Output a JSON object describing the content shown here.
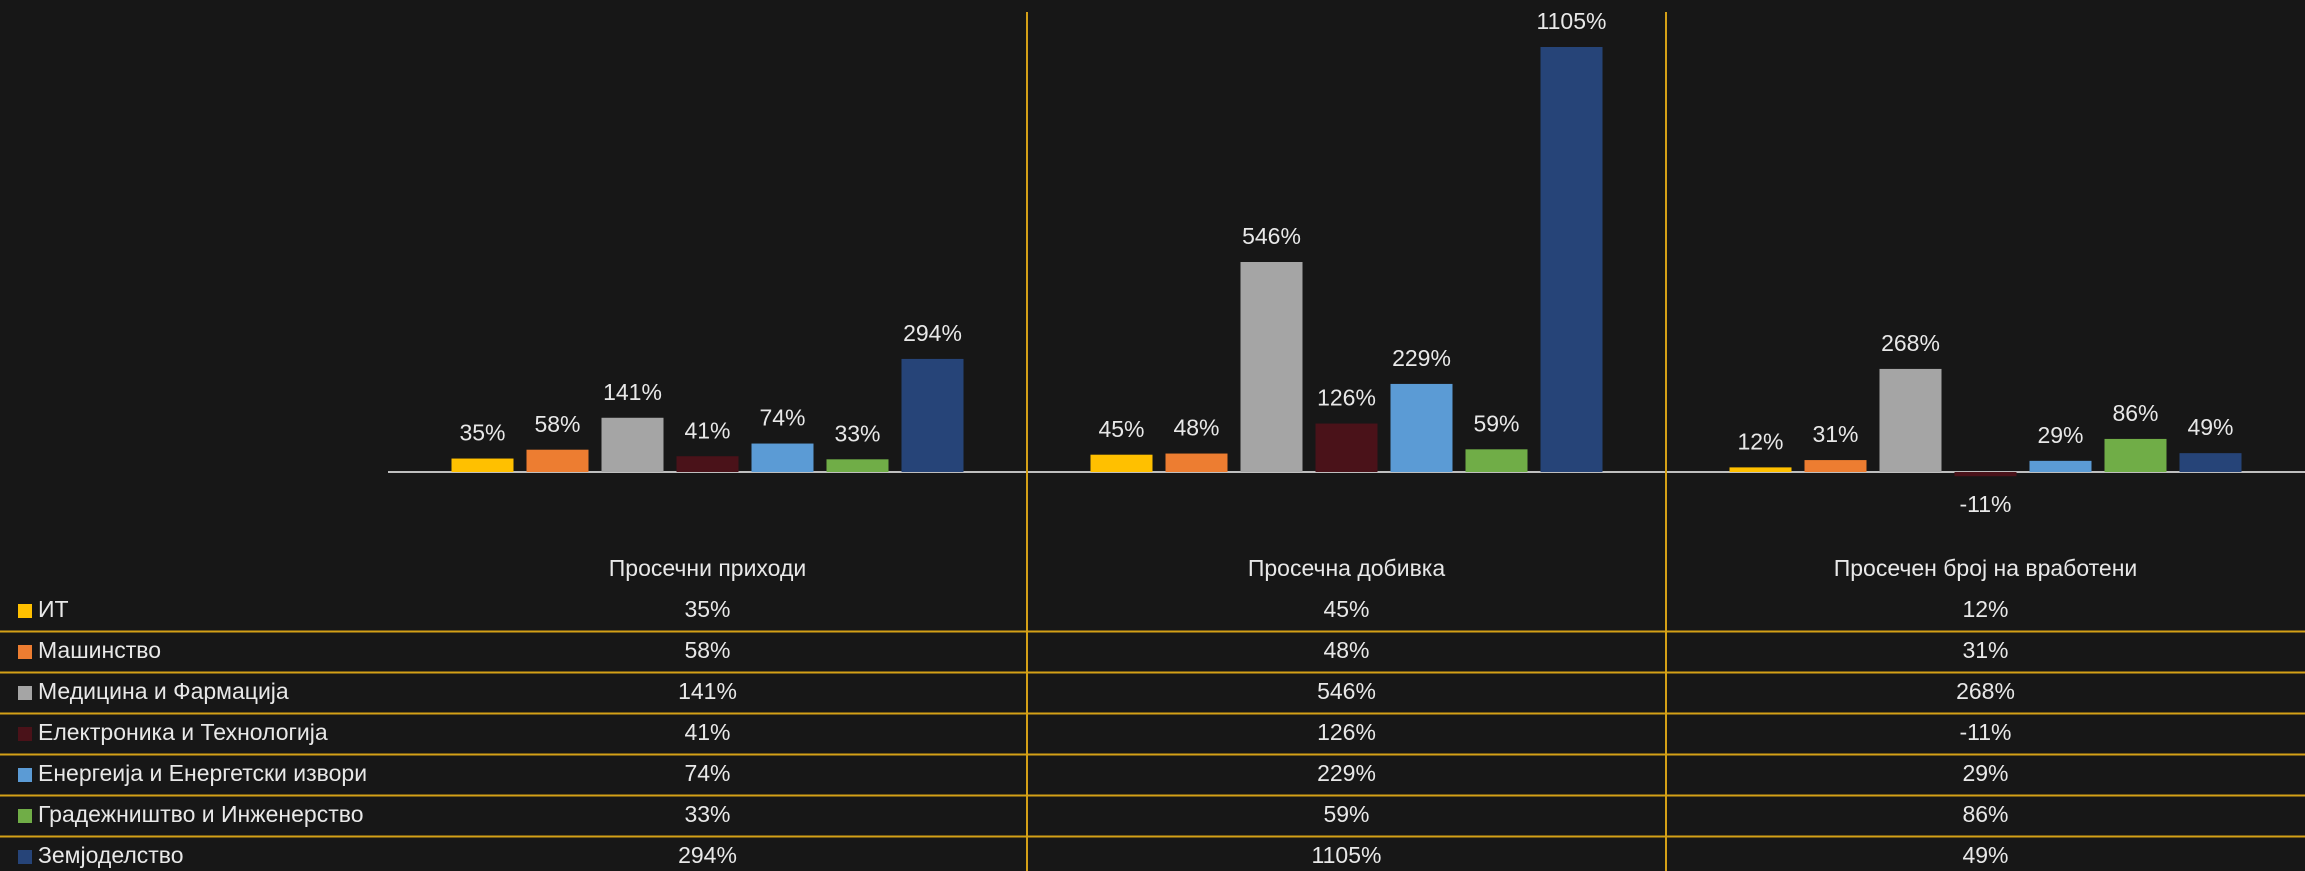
{
  "chart_data": {
    "type": "bar",
    "categories": [
      "Просечни приходи",
      "Просечна добивка",
      "Просечен број на вработени"
    ],
    "series": [
      {
        "name": "ИТ",
        "color": "#ffc000",
        "values": [
          35,
          45,
          12
        ],
        "value_labels": [
          "35%",
          "45%",
          "12%"
        ]
      },
      {
        "name": "Машинство",
        "color": "#ed7d31",
        "values": [
          58,
          48,
          31
        ],
        "value_labels": [
          "58%",
          "48%",
          "31%"
        ]
      },
      {
        "name": "Медицина и Фармација",
        "color": "#a5a5a5",
        "values": [
          141,
          546,
          268
        ],
        "value_labels": [
          "141%",
          "546%",
          "268%"
        ]
      },
      {
        "name": "Електроника и Технологија",
        "color": "#4a1219",
        "values": [
          41,
          126,
          -11
        ],
        "value_labels": [
          "41%",
          "126%",
          "-11%"
        ]
      },
      {
        "name": "Енергеија и Енергетски извори",
        "color": "#5b9bd5",
        "values": [
          74,
          229,
          29
        ],
        "value_labels": [
          "74%",
          "229%",
          "29%"
        ]
      },
      {
        "name": "Градежништво и Инженерство",
        "color": "#70ad47",
        "values": [
          33,
          59,
          86
        ],
        "value_labels": [
          "33%",
          "59%",
          "86%"
        ]
      },
      {
        "name": "Земјоделство",
        "color": "#264478",
        "values": [
          294,
          1105,
          49
        ],
        "value_labels": [
          "294%",
          "1105%",
          "49%"
        ]
      }
    ]
  }
}
